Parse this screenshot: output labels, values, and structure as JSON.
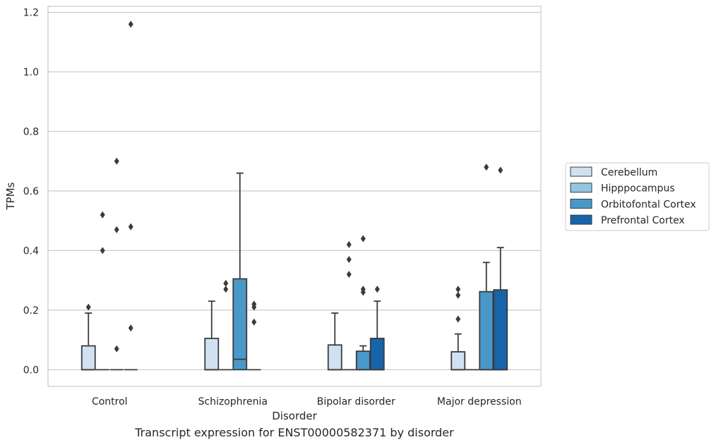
{
  "chart_data": {
    "type": "boxplot",
    "title": "",
    "caption": "Transcript expression for ENST00000582371 by disorder",
    "xlabel": "Disorder",
    "ylabel": "TPMs",
    "ylim": [
      -0.056,
      1.22
    ],
    "yticks": [
      0.0,
      0.2,
      0.4,
      0.6,
      0.8,
      1.0,
      1.2
    ],
    "ytick_labels": [
      "0.0",
      "0.2",
      "0.4",
      "0.6",
      "0.8",
      "1.0",
      "1.2"
    ],
    "grid": "horizontal",
    "legend_position": "right",
    "categories": [
      "Control",
      "Schizophrenia",
      "Bipolar disorder",
      "Major depression"
    ],
    "series": [
      {
        "name": "Cerebellum",
        "color": "#d0e1f2",
        "boxes": [
          {
            "q1": 0.0,
            "median": 0.0,
            "q3": 0.08,
            "whisker_low": 0.0,
            "whisker_high": 0.19,
            "outliers": [
              0.21
            ]
          },
          {
            "q1": 0.0,
            "median": 0.0,
            "q3": 0.105,
            "whisker_low": 0.0,
            "whisker_high": 0.23,
            "outliers": []
          },
          {
            "q1": 0.0,
            "median": 0.0,
            "q3": 0.083,
            "whisker_low": 0.0,
            "whisker_high": 0.19,
            "outliers": []
          },
          {
            "q1": 0.0,
            "median": 0.0,
            "q3": 0.06,
            "whisker_low": 0.0,
            "whisker_high": 0.12,
            "outliers": [
              0.17,
              0.25,
              0.27
            ]
          }
        ]
      },
      {
        "name": "Hipppocampus",
        "color": "#94c4df",
        "boxes": [
          {
            "q1": 0.0,
            "median": 0.0,
            "q3": 0.0,
            "whisker_low": 0.0,
            "whisker_high": 0.0,
            "outliers": [
              0.4,
              0.52
            ]
          },
          {
            "q1": 0.0,
            "median": 0.0,
            "q3": 0.0,
            "whisker_low": 0.0,
            "whisker_high": 0.0,
            "outliers": [
              0.27,
              0.29
            ]
          },
          {
            "q1": 0.0,
            "median": 0.0,
            "q3": 0.0,
            "whisker_low": 0.0,
            "whisker_high": 0.0,
            "outliers": [
              0.32,
              0.37,
              0.42
            ]
          },
          {
            "q1": 0.0,
            "median": 0.0,
            "q3": 0.0,
            "whisker_low": 0.0,
            "whisker_high": 0.0,
            "outliers": []
          }
        ]
      },
      {
        "name": "Orbitofontal Cortex",
        "color": "#4a98c9",
        "boxes": [
          {
            "q1": 0.0,
            "median": 0.0,
            "q3": 0.0,
            "whisker_low": 0.0,
            "whisker_high": 0.0,
            "outliers": [
              0.07,
              0.47,
              0.7
            ]
          },
          {
            "q1": 0.0,
            "median": 0.035,
            "q3": 0.305,
            "whisker_low": 0.0,
            "whisker_high": 0.66,
            "outliers": []
          },
          {
            "q1": 0.0,
            "median": 0.0,
            "q3": 0.062,
            "whisker_low": 0.0,
            "whisker_high": 0.08,
            "outliers": [
              0.26,
              0.27,
              0.44
            ]
          },
          {
            "q1": 0.0,
            "median": 0.0,
            "q3": 0.262,
            "whisker_low": 0.0,
            "whisker_high": 0.36,
            "outliers": [
              0.68
            ]
          }
        ]
      },
      {
        "name": "Prefrontal Cortex",
        "color": "#1764ab",
        "boxes": [
          {
            "q1": 0.0,
            "median": 0.0,
            "q3": 0.0,
            "whisker_low": 0.0,
            "whisker_high": 0.0,
            "outliers": [
              0.14,
              0.48,
              1.16
            ]
          },
          {
            "q1": 0.0,
            "median": 0.0,
            "q3": 0.0,
            "whisker_low": 0.0,
            "whisker_high": 0.0,
            "outliers": [
              0.16,
              0.21,
              0.22
            ]
          },
          {
            "q1": 0.0,
            "median": 0.0,
            "q3": 0.105,
            "whisker_low": 0.0,
            "whisker_high": 0.23,
            "outliers": [
              0.27
            ]
          },
          {
            "q1": 0.0,
            "median": 0.0,
            "q3": 0.268,
            "whisker_low": 0.0,
            "whisker_high": 0.41,
            "outliers": [
              0.67
            ]
          }
        ]
      }
    ]
  }
}
